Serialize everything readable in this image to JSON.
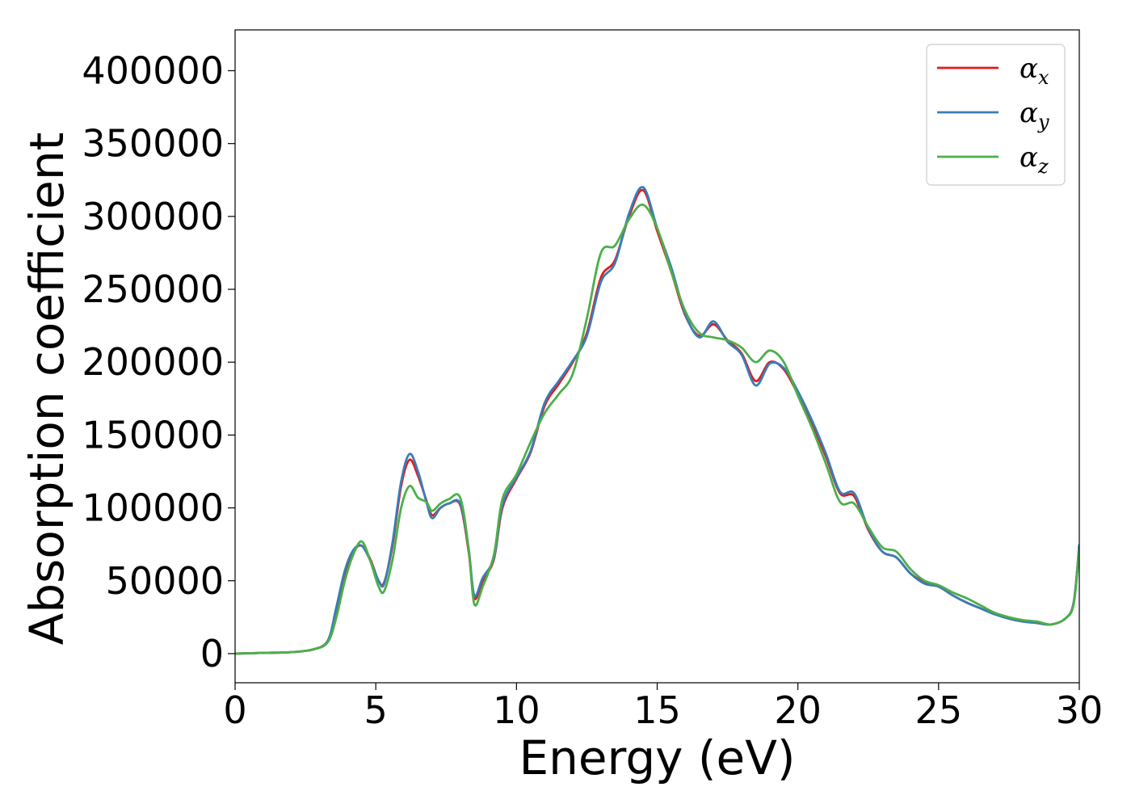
{
  "chart_data": {
    "type": "line",
    "xlabel": "Energy (eV)",
    "ylabel": "Absorption coefficient",
    "xlim": [
      0,
      30
    ],
    "ylim": [
      -20000,
      428000
    ],
    "x_ticks": [
      0,
      5,
      10,
      15,
      20,
      25,
      30
    ],
    "x_tick_labels": [
      "0",
      "5",
      "10",
      "15",
      "20",
      "25",
      "30"
    ],
    "y_ticks": [
      0,
      50000,
      100000,
      150000,
      200000,
      250000,
      300000,
      350000,
      400000
    ],
    "y_tick_labels": [
      "0",
      "50000",
      "100000",
      "150000",
      "200000",
      "250000",
      "300000",
      "350000",
      "400000"
    ],
    "grid": false,
    "legend_position": "top-right",
    "series": [
      {
        "name": "α_x",
        "label_main": "α",
        "label_sub": "x",
        "color": "#e41a1c",
        "x": [
          0,
          1,
          2,
          2.8,
          3.3,
          3.6,
          3.9,
          4.2,
          4.5,
          4.8,
          5.1,
          5.3,
          5.6,
          5.9,
          6.2,
          6.5,
          6.8,
          7.0,
          7.3,
          7.6,
          8.0,
          8.3,
          8.5,
          8.8,
          9.2,
          9.5,
          10.0,
          10.5,
          11.0,
          11.5,
          12.0,
          12.5,
          13.0,
          13.5,
          14.0,
          14.5,
          15.0,
          15.5,
          16.0,
          16.5,
          17.0,
          17.5,
          18.0,
          18.5,
          19.0,
          19.5,
          20.0,
          20.5,
          21.0,
          21.5,
          22.0,
          22.5,
          23.0,
          23.5,
          24.0,
          24.5,
          25.0,
          25.5,
          26.0,
          26.5,
          27.0,
          27.5,
          28.0,
          28.5,
          29.0,
          29.5,
          29.8,
          30.0
        ],
        "y": [
          0,
          500,
          1000,
          3000,
          9000,
          30000,
          55000,
          70000,
          74000,
          65000,
          50000,
          49000,
          75000,
          115000,
          133000,
          122000,
          105000,
          95000,
          100000,
          103000,
          102000,
          70000,
          38000,
          50000,
          65000,
          100000,
          120000,
          138000,
          170000,
          185000,
          200000,
          220000,
          258000,
          270000,
          300000,
          318000,
          290000,
          262000,
          232000,
          218000,
          226000,
          215000,
          206000,
          187000,
          200000,
          195000,
          178000,
          158000,
          135000,
          110000,
          108000,
          85000,
          70000,
          66000,
          55000,
          49000,
          46000,
          40000,
          35000,
          31000,
          27000,
          24000,
          22000,
          21000,
          20000,
          24000,
          35000,
          75000
        ]
      },
      {
        "name": "α_y",
        "label_main": "α",
        "label_sub": "y",
        "color": "#377eb8",
        "x": [
          0,
          1,
          2,
          2.8,
          3.3,
          3.6,
          3.9,
          4.2,
          4.5,
          4.8,
          5.1,
          5.3,
          5.6,
          5.9,
          6.2,
          6.5,
          6.8,
          7.0,
          7.3,
          7.6,
          8.0,
          8.3,
          8.5,
          8.8,
          9.2,
          9.5,
          10.0,
          10.5,
          11.0,
          11.5,
          12.0,
          12.5,
          13.0,
          13.5,
          14.0,
          14.5,
          15.0,
          15.5,
          16.0,
          16.5,
          17.0,
          17.5,
          18.0,
          18.5,
          19.0,
          19.5,
          20.0,
          20.5,
          21.0,
          21.5,
          22.0,
          22.5,
          23.0,
          23.5,
          24.0,
          24.5,
          25.0,
          25.5,
          26.0,
          26.5,
          27.0,
          27.5,
          28.0,
          28.5,
          29.0,
          29.5,
          29.8,
          30.0
        ],
        "y": [
          0,
          500,
          1000,
          3000,
          9000,
          32000,
          57000,
          71000,
          74000,
          64000,
          50000,
          48000,
          77000,
          118000,
          137000,
          125000,
          104000,
          93000,
          100000,
          103000,
          103000,
          72000,
          40000,
          52000,
          66000,
          102000,
          121000,
          139000,
          172000,
          187000,
          201000,
          218000,
          255000,
          268000,
          302000,
          320000,
          292000,
          265000,
          233000,
          217000,
          228000,
          214000,
          205000,
          184000,
          199000,
          196000,
          180000,
          160000,
          137000,
          111000,
          110000,
          86000,
          70000,
          66000,
          55000,
          48000,
          46000,
          40000,
          35000,
          31000,
          27000,
          24000,
          22000,
          21000,
          20000,
          24000,
          35000,
          75000
        ]
      },
      {
        "name": "α_z",
        "label_main": "α",
        "label_sub": "z",
        "color": "#4daf4a",
        "x": [
          0,
          1,
          2,
          2.8,
          3.3,
          3.6,
          3.9,
          4.2,
          4.5,
          4.8,
          5.1,
          5.3,
          5.6,
          5.9,
          6.2,
          6.5,
          6.8,
          7.0,
          7.3,
          7.6,
          8.0,
          8.3,
          8.5,
          8.8,
          9.2,
          9.5,
          10.0,
          10.5,
          11.0,
          11.5,
          12.0,
          12.5,
          13.0,
          13.5,
          14.0,
          14.5,
          15.0,
          15.5,
          16.0,
          16.5,
          17.0,
          17.5,
          18.0,
          18.5,
          19.0,
          19.5,
          20.0,
          20.5,
          21.0,
          21.5,
          22.0,
          22.5,
          23.0,
          23.5,
          24.0,
          24.5,
          25.0,
          25.5,
          26.0,
          26.5,
          27.0,
          27.5,
          28.0,
          28.5,
          29.0,
          29.5,
          29.8,
          30.0
        ],
        "y": [
          0,
          500,
          1000,
          3000,
          8000,
          25000,
          50000,
          68000,
          77000,
          64000,
          46000,
          43000,
          65000,
          100000,
          115000,
          107000,
          104000,
          98000,
          103000,
          106000,
          107000,
          72000,
          34000,
          46000,
          68000,
          106000,
          123000,
          145000,
          165000,
          178000,
          192000,
          230000,
          275000,
          280000,
          298000,
          308000,
          292000,
          262000,
          235000,
          220000,
          217000,
          215000,
          210000,
          200000,
          208000,
          200000,
          177000,
          155000,
          130000,
          104000,
          103000,
          87000,
          73000,
          70000,
          58000,
          50000,
          47000,
          42000,
          38000,
          33000,
          28000,
          25000,
          23000,
          22000,
          20000,
          24000,
          34000,
          72000
        ]
      }
    ]
  }
}
